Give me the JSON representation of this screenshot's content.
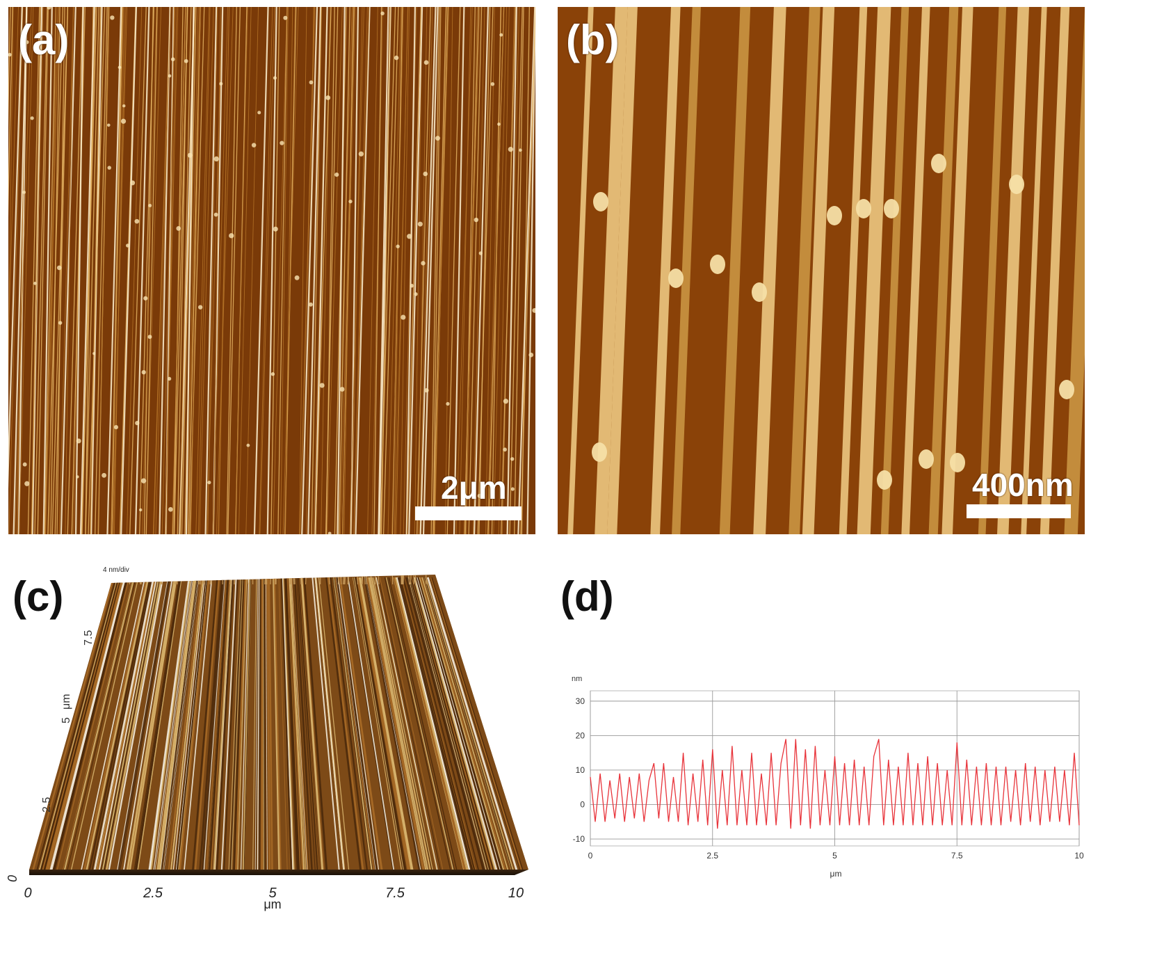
{
  "panels": {
    "a": {
      "label": "(a)",
      "scale_bar": "2μm"
    },
    "b": {
      "label": "(b)",
      "scale_bar": "400nm"
    },
    "c": {
      "label": "(c)",
      "z_scale": "4 nm/div",
      "y_axis_unit": "μm",
      "y_ticks": [
        "2.5",
        "5",
        "7.5"
      ],
      "x_ticks": [
        "0",
        "2.5",
        "5",
        "7.5",
        "10"
      ],
      "x_axis_label": "μm",
      "origin_tick": "0"
    },
    "d": {
      "label": "(d)"
    }
  },
  "colors": {
    "afm_dark": "#7a3a08",
    "afm_bright": "#f2d49a",
    "profile_line": "#e8333a",
    "grid": "#9a9a9a"
  },
  "chart_data": {
    "type": "line",
    "title": "",
    "xlabel": "μm",
    "ylabel": "nm",
    "xlim": [
      0,
      10
    ],
    "ylim": [
      -12,
      33
    ],
    "xticks": [
      0,
      2.5,
      5,
      7.5,
      10
    ],
    "yticks": [
      -10,
      0,
      10,
      20,
      30
    ],
    "grid": true,
    "series": [
      {
        "x": [
          0,
          0.1,
          0.2,
          0.3,
          0.4,
          0.5,
          0.6,
          0.7,
          0.8,
          0.9,
          1.0,
          1.1,
          1.2,
          1.3,
          1.4,
          1.5,
          1.6,
          1.7,
          1.8,
          1.9,
          2.0,
          2.1,
          2.2,
          2.3,
          2.4,
          2.5,
          2.6,
          2.7,
          2.8,
          2.9,
          3.0,
          3.1,
          3.2,
          3.3,
          3.4,
          3.5,
          3.6,
          3.7,
          3.8,
          3.9,
          4.0,
          4.1,
          4.2,
          4.3,
          4.4,
          4.5,
          4.6,
          4.7,
          4.8,
          4.9,
          5.0,
          5.1,
          5.2,
          5.3,
          5.4,
          5.5,
          5.6,
          5.7,
          5.8,
          5.9,
          6.0,
          6.1,
          6.2,
          6.3,
          6.4,
          6.5,
          6.6,
          6.7,
          6.8,
          6.9,
          7.0,
          7.1,
          7.2,
          7.3,
          7.4,
          7.5,
          7.6,
          7.7,
          7.8,
          7.9,
          8.0,
          8.1,
          8.2,
          8.3,
          8.4,
          8.5,
          8.6,
          8.7,
          8.8,
          8.9,
          9.0,
          9.1,
          9.2,
          9.3,
          9.4,
          9.5,
          9.6,
          9.7,
          9.8,
          9.9,
          10.0
        ],
        "values": [
          8,
          -5,
          9,
          -5,
          7,
          -4,
          9,
          -5,
          8,
          -4,
          9,
          -5,
          7,
          12,
          -4,
          12,
          -5,
          8,
          -5,
          15,
          -6,
          9,
          -5,
          13,
          -6,
          16,
          -7,
          10,
          -6,
          17,
          -6,
          10,
          -6,
          15,
          -6,
          9,
          -6,
          15,
          -6,
          12,
          19,
          -7,
          19,
          -6,
          16,
          -7,
          17,
          -6,
          10,
          -6,
          14,
          -6,
          12,
          -6,
          13,
          -6,
          11,
          -6,
          14,
          19,
          -6,
          13,
          -6,
          11,
          -6,
          15,
          -6,
          12,
          -6,
          14,
          -6,
          12,
          -6,
          10,
          -6,
          18,
          -6,
          13,
          -6,
          11,
          -6,
          12,
          -6,
          11,
          -6,
          11,
          -5,
          10,
          -6,
          12,
          -5,
          11,
          -6,
          10,
          -5,
          11,
          -5,
          10,
          -6,
          15,
          -6
        ]
      }
    ]
  }
}
